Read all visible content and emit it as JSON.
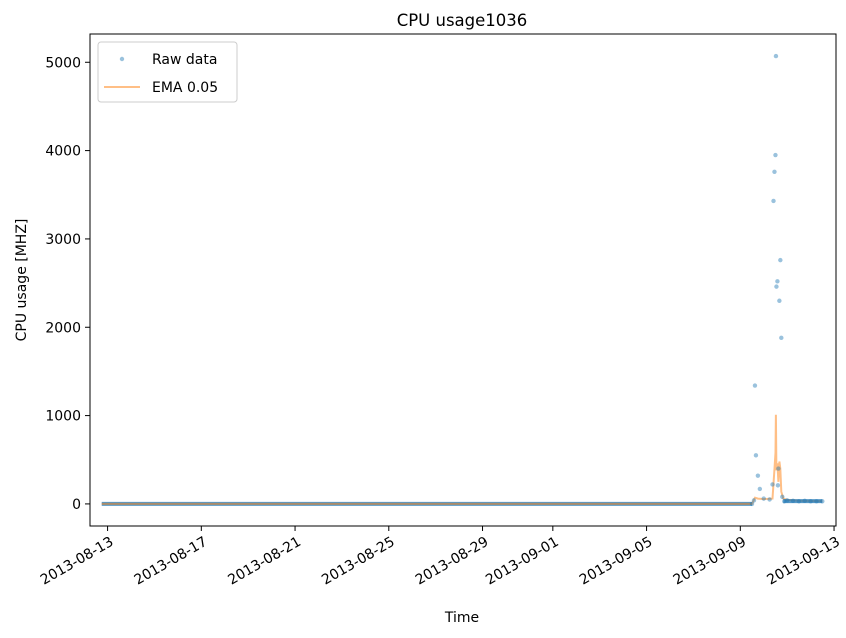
{
  "chart_data": {
    "type": "line",
    "title": "CPU usage1036",
    "xlabel": "Time",
    "ylabel": "CPU usage [MHZ]",
    "x_ticks": [
      "2013-08-13",
      "2013-08-17",
      "2013-08-21",
      "2013-08-25",
      "2013-08-29",
      "2013-09-01",
      "2013-09-05",
      "2013-09-09",
      "2013-09-13"
    ],
    "y_ticks": [
      0,
      1000,
      2000,
      3000,
      4000,
      5000
    ],
    "xlim": [
      "2013-08-12T06:00",
      "2013-09-13T02:00"
    ],
    "ylim": [
      -250,
      5320
    ],
    "legend": {
      "placement": "top-left"
    },
    "grid": false,
    "series": [
      {
        "name": "Raw data",
        "kind": "markers",
        "color": "#1f77b4",
        "baseline": {
          "x_start": "2013-08-12T18:00",
          "x_end": "2013-09-09T12:00",
          "y": 0
        },
        "points": [
          [
            "2013-09-09T12:00",
            0
          ],
          [
            "2013-09-09T14:00",
            40
          ],
          [
            "2013-09-09T15:00",
            1340
          ],
          [
            "2013-09-09T16:00",
            550
          ],
          [
            "2013-09-09T18:00",
            320
          ],
          [
            "2013-09-09T20:00",
            170
          ],
          [
            "2013-09-10T00:00",
            60
          ],
          [
            "2013-09-10T06:00",
            50
          ],
          [
            "2013-09-10T09:00",
            220
          ],
          [
            "2013-09-10T10:00",
            3430
          ],
          [
            "2013-09-10T11:00",
            3760
          ],
          [
            "2013-09-10T12:00",
            3950
          ],
          [
            "2013-09-10T12:30",
            5070
          ],
          [
            "2013-09-10T13:00",
            2460
          ],
          [
            "2013-09-10T14:00",
            2520
          ],
          [
            "2013-09-10T14:30",
            210
          ],
          [
            "2013-09-10T15:00",
            400
          ],
          [
            "2013-09-10T16:00",
            2300
          ],
          [
            "2013-09-10T17:00",
            2760
          ],
          [
            "2013-09-10T18:00",
            1880
          ],
          [
            "2013-09-10T19:00",
            80
          ],
          [
            "2013-09-10T21:00",
            30
          ],
          [
            "2013-09-11T00:00",
            40
          ],
          [
            "2013-09-11T06:00",
            35
          ],
          [
            "2013-09-11T12:00",
            30
          ],
          [
            "2013-09-11T18:00",
            35
          ],
          [
            "2013-09-12T00:00",
            30
          ],
          [
            "2013-09-12T06:00",
            30
          ],
          [
            "2013-09-12T12:00",
            30
          ]
        ]
      },
      {
        "name": "EMA 0.05",
        "kind": "line",
        "color": "#ff7f0e",
        "points": [
          [
            "2013-08-12T18:00",
            0
          ],
          [
            "2013-09-09T12:00",
            0
          ],
          [
            "2013-09-09T15:00",
            70
          ],
          [
            "2013-09-09T18:00",
            60
          ],
          [
            "2013-09-10T00:00",
            55
          ],
          [
            "2013-09-10T09:00",
            60
          ],
          [
            "2013-09-10T10:00",
            230
          ],
          [
            "2013-09-10T11:00",
            400
          ],
          [
            "2013-09-10T12:00",
            580
          ],
          [
            "2013-09-10T12:30",
            1010
          ],
          [
            "2013-09-10T13:00",
            380
          ],
          [
            "2013-09-10T14:00",
            460
          ],
          [
            "2013-09-10T15:00",
            250
          ],
          [
            "2013-09-10T16:00",
            480
          ],
          [
            "2013-09-10T17:00",
            400
          ],
          [
            "2013-09-10T18:00",
            140
          ],
          [
            "2013-09-10T20:00",
            60
          ],
          [
            "2013-09-11T00:00",
            45
          ],
          [
            "2013-09-11T12:00",
            35
          ],
          [
            "2013-09-12T12:00",
            32
          ]
        ]
      }
    ]
  }
}
